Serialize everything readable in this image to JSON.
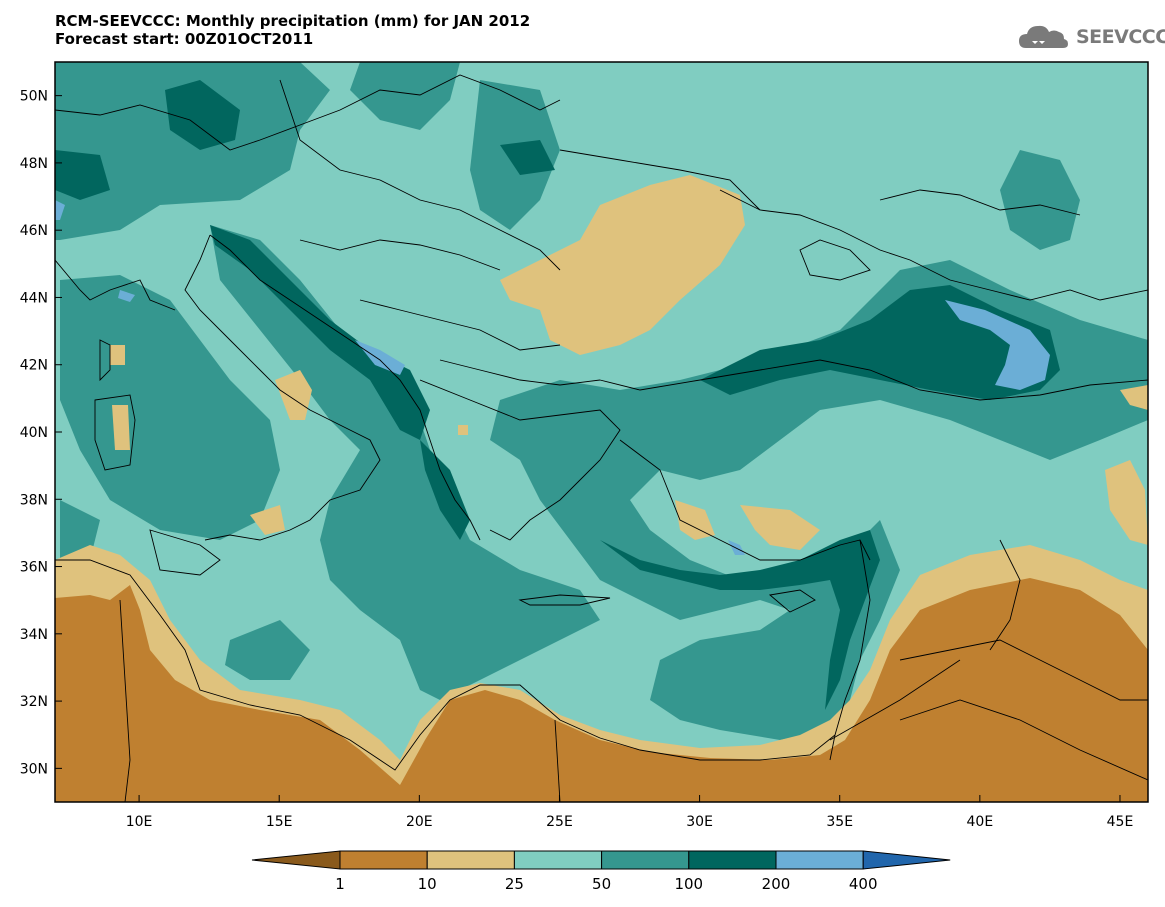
{
  "title": {
    "line1": "RCM-SEEVCCC: Monthly precipitation (mm) for JAN 2012",
    "line2": "Forecast start: 00Z01OCT2011"
  },
  "logo": {
    "text": "SEEVCCC",
    "icon": "cloud-icon"
  },
  "axes": {
    "lon_min": 7,
    "lon_max": 46,
    "lat_min": 29,
    "lat_max": 51,
    "x_ticks": [
      {
        "value": 10,
        "label": "10E"
      },
      {
        "value": 15,
        "label": "15E"
      },
      {
        "value": 20,
        "label": "20E"
      },
      {
        "value": 25,
        "label": "25E"
      },
      {
        "value": 30,
        "label": "30E"
      },
      {
        "value": 35,
        "label": "35E"
      },
      {
        "value": 40,
        "label": "40E"
      },
      {
        "value": 45,
        "label": "45E"
      }
    ],
    "y_ticks": [
      {
        "value": 30,
        "label": "30N"
      },
      {
        "value": 32,
        "label": "32N"
      },
      {
        "value": 34,
        "label": "34N"
      },
      {
        "value": 36,
        "label": "36N"
      },
      {
        "value": 38,
        "label": "38N"
      },
      {
        "value": 40,
        "label": "40N"
      },
      {
        "value": 42,
        "label": "42N"
      },
      {
        "value": 44,
        "label": "44N"
      },
      {
        "value": 46,
        "label": "46N"
      },
      {
        "value": 48,
        "label": "48N"
      },
      {
        "value": 50,
        "label": "50N"
      }
    ]
  },
  "colorbar": {
    "colors": [
      "#8a5a1c",
      "#bf8030",
      "#dfc27d",
      "#80cdc1",
      "#35978f",
      "#01665e",
      "#6baed6",
      "#2166ac"
    ],
    "labels": [
      "1",
      "10",
      "25",
      "50",
      "100",
      "200",
      "400"
    ]
  }
}
